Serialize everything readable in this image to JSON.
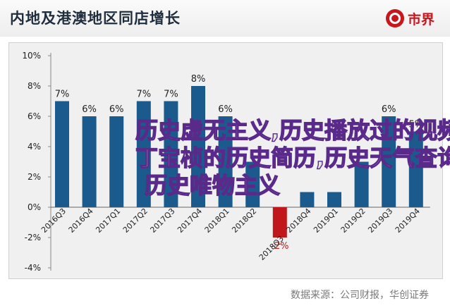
{
  "header": {
    "title": "内地及港澳地区同店增长",
    "brand": "市界",
    "brand_icon": "brand-logo-icon"
  },
  "watermark": {
    "line1": "历史虚无主义,历史播放过的视频,",
    "line2": "丁宝桢的历史简历,历史天气查询,",
    "line3": "历史唯物主义"
  },
  "source": "数据来源：公司财报，华创证券",
  "colors": {
    "bar": "#1b5a8c",
    "bar_negative": "#c0161c",
    "label_negative": "#c0161c",
    "axis_text": "#222222"
  },
  "chart_data": {
    "type": "bar",
    "categories": [
      "2016Q3",
      "2016Q4",
      "2017Q1",
      "2017Q2",
      "2017Q3",
      "2017Q4",
      "2018Q1",
      "2018Q2",
      "2018Q3",
      "2018Q4",
      "2019Q1",
      "2019Q2",
      "2019Q3",
      "2019Q4"
    ],
    "values": [
      7,
      6,
      6,
      7,
      7,
      8,
      6,
      3,
      -2,
      1,
      1,
      3,
      6,
      5
    ],
    "data_labels": [
      "7%",
      "6%",
      "6%",
      "7%",
      "7%",
      "8%",
      "6%",
      "",
      "-2%",
      "",
      "",
      "",
      "6%",
      "5%"
    ],
    "y_ticks": [
      -4,
      -2,
      0,
      2,
      4,
      6,
      8,
      10
    ],
    "y_tick_labels": [
      "-4%",
      "-2%",
      "0%",
      "2%",
      "4%",
      "6%",
      "8%",
      "10%"
    ],
    "ylim": [
      -4,
      10
    ],
    "grid": false,
    "title": "内地及港澳地区同店增长"
  }
}
